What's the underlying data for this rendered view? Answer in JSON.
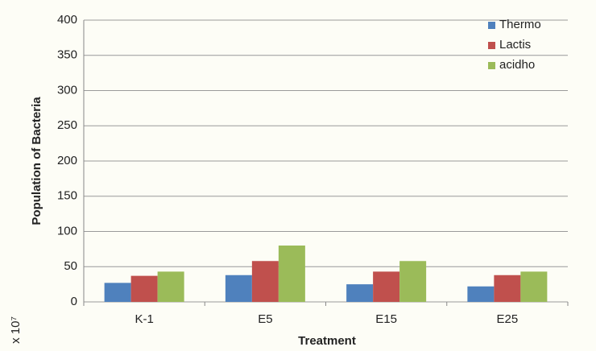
{
  "chart_data": {
    "type": "bar",
    "x_label": "Treatment",
    "y_label": "Population of Bacteria",
    "unit_note": "x 10⁷",
    "categories": [
      "K-1",
      "E5",
      "E15",
      "E25"
    ],
    "series": [
      {
        "name": "Thermo",
        "color": "#4f81bd",
        "values": [
          27,
          38,
          25,
          22
        ]
      },
      {
        "name": "Lactis",
        "color": "#c0504d",
        "values": [
          37,
          58,
          43,
          38
        ]
      },
      {
        "name": "acidho",
        "color": "#9bbb59",
        "values": [
          43,
          80,
          58,
          43
        ]
      }
    ],
    "ylim": [
      0,
      400
    ],
    "yticks": [
      0,
      50,
      100,
      150,
      200,
      250,
      300,
      350,
      400
    ],
    "grid": true,
    "legend": "top-right"
  }
}
